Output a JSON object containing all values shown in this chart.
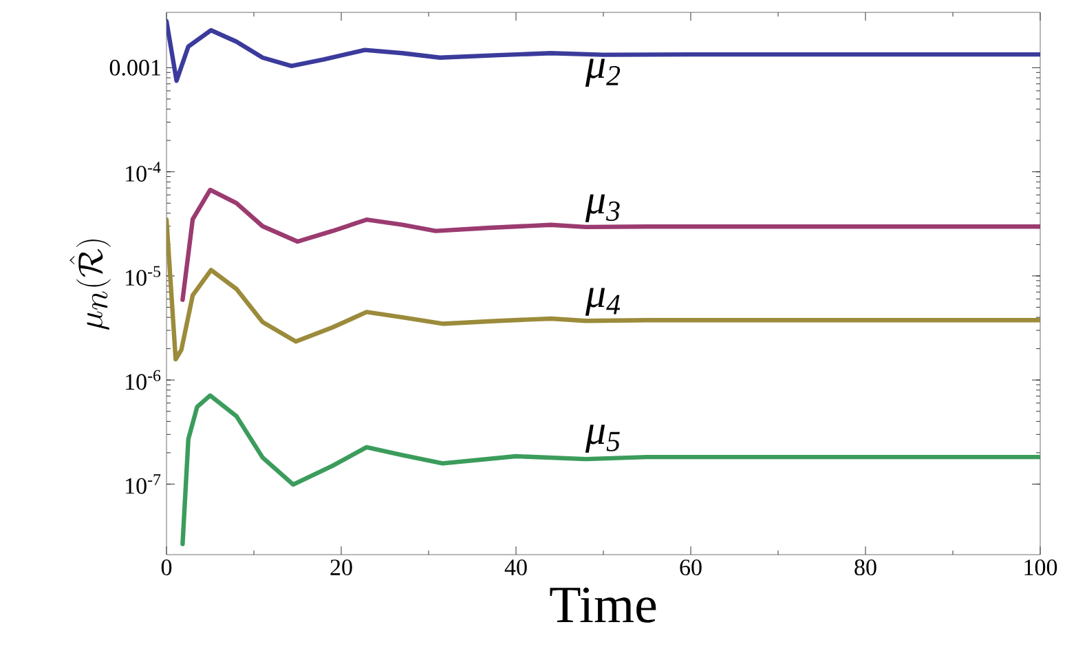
{
  "chart_data": {
    "type": "line",
    "xlabel": "Time",
    "ylabel": "\\mu_n(\\hat{\\mathcal{R}})",
    "log": "y",
    "legend": false,
    "grid": false,
    "marker": "none",
    "line_style": "solid",
    "xlim": [
      0,
      100
    ],
    "ylim": [
      2.1e-08,
      0.0034
    ],
    "xticks": [
      0,
      20,
      40,
      60,
      80,
      100
    ],
    "yticks": [
      {
        "value": 1e-07,
        "label": "10$^{-7}$"
      },
      {
        "value": 1e-06,
        "label": "10$^{-6}$"
      },
      {
        "value": 1e-05,
        "label": "10$^{-5}$"
      },
      {
        "value": 0.0001,
        "label": "10$^{-4}$"
      },
      0.001
    ],
    "series": [
      {
        "name": "μ$_{2}$",
        "color": "#3b3b9c",
        "x": [
          0,
          1.15,
          2.5,
          5.1,
          8,
          11,
          14.3,
          18,
          22.7,
          27,
          31.3,
          38,
          44,
          50,
          60,
          70,
          80,
          90,
          100
        ],
        "values": [
          0.0028,
          0.00075,
          0.0016,
          0.00229,
          0.00178,
          0.00125,
          0.00104,
          0.0012,
          0.00148,
          0.00138,
          0.00125,
          0.00132,
          0.00138,
          0.00133,
          0.00134,
          0.00134,
          0.00134,
          0.00134,
          0.00134
        ]
      },
      {
        "name": "μ$_{3}$",
        "color": "#9b3b70",
        "x": [
          1.84,
          3,
          5,
          8,
          11,
          15,
          19,
          22.9,
          27,
          30.8,
          37,
          44,
          48,
          55,
          70,
          85,
          100
        ],
        "values": [
          5.9e-06,
          3.5e-05,
          6.7e-05,
          5e-05,
          3e-05,
          2.14e-05,
          2.7e-05,
          3.47e-05,
          3.1e-05,
          2.7e-05,
          2.9e-05,
          3.09e-05,
          2.95e-05,
          2.98e-05,
          2.98e-05,
          2.98e-05,
          2.98e-05
        ]
      },
      {
        "name": "μ$_{4}$",
        "color": "#9b8b3b",
        "x": [
          0,
          1.05,
          1.7,
          3,
          5.1,
          8,
          11,
          14.8,
          19,
          22.9,
          27,
          31.6,
          38,
          44,
          48,
          55,
          70,
          85,
          100
        ],
        "values": [
          3.47e-05,
          1.58e-06,
          1.95e-06,
          6.5e-06,
          1.14e-05,
          7.5e-06,
          3.6e-06,
          2.34e-06,
          3.2e-06,
          4.5e-06,
          4e-06,
          3.47e-06,
          3.7e-06,
          3.89e-06,
          3.7e-06,
          3.76e-06,
          3.76e-06,
          3.76e-06,
          3.76e-06
        ]
      },
      {
        "name": "μ$_{5}$",
        "color": "#3b9c5c",
        "x": [
          1.84,
          2.5,
          3.5,
          5,
          8,
          11,
          14.5,
          19,
          22.9,
          27,
          31.6,
          40,
          48,
          55,
          70,
          85,
          100
        ],
        "values": [
          2.66e-08,
          2.7e-07,
          5.5e-07,
          7.1e-07,
          4.5e-07,
          1.8e-07,
          9.9e-08,
          1.5e-07,
          2.26e-07,
          1.9e-07,
          1.58e-07,
          1.85e-07,
          1.74e-07,
          1.82e-07,
          1.82e-07,
          1.82e-07,
          1.82e-07
        ]
      }
    ]
  }
}
